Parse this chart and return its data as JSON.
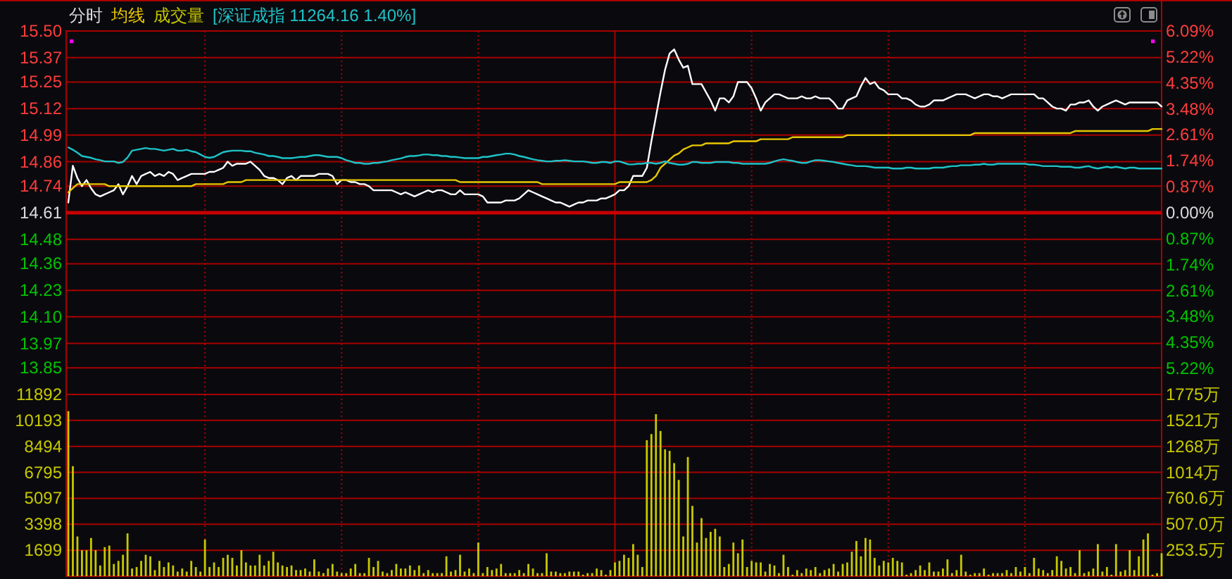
{
  "chart_data": [
    {
      "type": "line",
      "title": "分时",
      "categories": [
        null,
        null,
        null,
        null,
        null,
        null,
        null,
        null,
        null,
        null,
        null,
        null,
        null,
        null,
        null,
        null,
        null,
        null,
        null,
        null,
        null,
        null,
        null,
        null,
        null,
        null,
        null,
        null,
        null,
        null,
        null,
        null,
        null,
        null,
        null,
        null,
        null,
        null,
        null,
        null,
        null,
        null,
        null,
        null,
        null,
        null,
        null,
        null,
        null,
        null,
        null,
        null,
        null,
        null,
        null,
        null,
        null,
        null,
        null,
        null,
        null,
        null,
        null,
        null,
        null,
        null,
        null,
        null,
        null,
        null,
        null,
        null,
        null,
        null,
        null,
        null,
        null,
        null,
        null,
        null,
        null,
        null,
        null,
        null,
        null,
        null,
        null,
        null,
        null,
        null,
        null,
        null,
        null,
        null,
        null,
        null,
        null,
        null,
        null,
        null,
        null,
        null,
        null,
        null,
        null,
        null,
        null,
        null,
        null,
        null,
        null,
        null,
        null,
        null,
        null,
        null,
        null,
        null,
        null,
        null,
        null,
        null,
        null,
        null,
        null,
        null,
        null,
        null,
        null,
        null,
        null,
        null,
        null,
        null,
        null,
        null,
        null,
        null,
        null,
        null,
        null,
        null,
        null,
        null,
        null,
        null,
        null,
        null,
        null,
        null,
        null,
        null,
        null,
        null,
        null,
        null,
        null,
        null,
        null,
        null,
        null,
        null,
        null,
        null,
        null,
        null,
        null,
        null,
        null,
        null,
        null,
        null,
        null,
        null,
        null,
        null,
        null,
        null,
        null,
        null,
        null,
        null,
        null,
        null,
        null,
        null,
        null,
        null,
        null,
        null,
        null,
        null,
        null,
        null,
        null,
        null,
        null,
        null,
        null,
        null,
        null,
        null,
        null,
        null,
        null,
        null,
        null,
        null,
        null,
        null,
        null,
        null,
        null,
        null,
        null,
        null,
        null,
        null,
        null,
        null,
        null,
        null,
        null,
        null,
        null,
        null,
        null,
        null,
        null,
        null,
        null,
        null,
        null,
        null,
        null,
        null,
        null,
        null,
        null,
        null,
        null
      ],
      "series": [
        {
          "color": "#ffffff",
          "values": [
            14.66,
            14.84,
            14.78,
            14.74,
            14.77,
            14.73,
            14.7,
            14.69,
            14.7,
            14.71,
            14.72,
            14.75,
            14.7,
            14.74,
            14.79,
            14.75,
            14.79,
            14.8,
            14.81,
            14.79,
            14.8,
            14.79,
            14.81,
            14.8,
            14.77,
            14.78,
            14.79,
            14.8,
            14.8,
            14.8,
            14.8,
            14.81,
            14.81,
            14.82,
            14.83,
            14.86,
            14.84,
            14.85,
            14.85,
            14.85,
            14.86,
            14.84,
            14.82,
            14.79,
            14.78,
            14.78,
            14.77,
            14.75,
            14.78,
            14.79,
            14.77,
            14.79,
            14.79,
            14.79,
            14.79,
            14.8,
            14.8,
            14.8,
            14.79,
            14.75,
            14.77,
            14.77,
            14.76,
            14.76,
            14.75,
            14.75,
            14.74,
            14.72,
            14.72,
            14.72,
            14.72,
            14.72,
            14.71,
            14.7,
            14.71,
            14.7,
            14.69,
            14.7,
            14.71,
            14.72,
            14.71,
            14.72,
            14.72,
            14.71,
            14.7,
            14.7,
            14.72,
            14.7,
            14.7,
            14.7,
            14.7,
            14.69,
            14.66,
            14.66,
            14.66,
            14.66,
            14.67,
            14.67,
            14.67,
            14.68,
            14.7,
            14.72,
            14.71,
            14.7,
            14.69,
            14.68,
            14.67,
            14.66,
            14.66,
            14.65,
            14.64,
            14.65,
            14.66,
            14.66,
            14.67,
            14.67,
            14.67,
            14.68,
            14.68,
            14.69,
            14.7,
            14.72,
            14.72,
            14.74,
            14.79,
            14.79,
            14.79,
            14.83,
            14.96,
            15.08,
            15.2,
            15.31,
            15.39,
            15.41,
            15.36,
            15.32,
            15.33,
            15.24,
            15.24,
            15.24,
            15.2,
            15.16,
            15.11,
            15.17,
            15.17,
            15.15,
            15.18,
            15.25,
            15.25,
            15.25,
            15.22,
            15.17,
            15.11,
            15.15,
            15.17,
            15.19,
            15.19,
            15.18,
            15.17,
            15.17,
            15.17,
            15.18,
            15.17,
            15.17,
            15.18,
            15.17,
            15.17,
            15.17,
            15.15,
            15.12,
            15.12,
            15.16,
            15.17,
            15.18,
            15.23,
            15.27,
            15.24,
            15.25,
            15.22,
            15.21,
            15.19,
            15.19,
            15.19,
            15.17,
            15.17,
            15.16,
            15.14,
            15.13,
            15.13,
            15.14,
            15.16,
            15.16,
            15.16,
            15.17,
            15.18,
            15.19,
            15.19,
            15.19,
            15.18,
            15.17,
            15.18,
            15.19,
            15.19,
            15.18,
            15.18,
            15.17,
            15.18,
            15.19,
            15.19,
            15.19,
            15.19,
            15.19,
            15.19,
            15.17,
            15.17,
            15.15,
            15.13,
            15.12,
            15.12,
            15.11,
            15.14,
            15.14,
            15.15,
            15.15,
            15.16,
            15.13,
            15.11,
            15.13,
            15.14,
            15.15,
            15.16,
            15.15,
            15.14,
            15.15,
            15.15,
            15.15,
            15.15,
            15.15,
            15.15,
            15.15,
            15.13
          ]
        },
        {
          "name": "均线",
          "color": "#e8c800",
          "values": [
            14.71,
            14.73,
            14.75,
            14.75,
            14.75,
            14.75,
            14.75,
            14.75,
            14.75,
            14.74,
            14.74,
            14.74,
            14.74,
            14.74,
            14.74,
            14.74,
            14.74,
            14.74,
            14.74,
            14.74,
            14.74,
            14.74,
            14.74,
            14.74,
            14.74,
            14.74,
            14.74,
            14.74,
            14.75,
            14.75,
            14.75,
            14.75,
            14.75,
            14.75,
            14.75,
            14.76,
            14.76,
            14.76,
            14.76,
            14.77,
            14.77,
            14.77,
            14.77,
            14.77,
            14.77,
            14.77,
            14.77,
            14.77,
            14.77,
            14.77,
            14.77,
            14.77,
            14.77,
            14.77,
            14.77,
            14.77,
            14.77,
            14.77,
            14.77,
            14.77,
            14.77,
            14.77,
            14.77,
            14.77,
            14.77,
            14.77,
            14.77,
            14.77,
            14.77,
            14.77,
            14.77,
            14.77,
            14.77,
            14.77,
            14.77,
            14.77,
            14.77,
            14.77,
            14.77,
            14.77,
            14.77,
            14.77,
            14.77,
            14.77,
            14.77,
            14.77,
            14.76,
            14.76,
            14.76,
            14.76,
            14.76,
            14.76,
            14.76,
            14.76,
            14.76,
            14.76,
            14.76,
            14.76,
            14.76,
            14.76,
            14.76,
            14.76,
            14.76,
            14.76,
            14.75,
            14.75,
            14.75,
            14.75,
            14.75,
            14.75,
            14.75,
            14.75,
            14.75,
            14.75,
            14.75,
            14.75,
            14.75,
            14.75,
            14.75,
            14.75,
            14.75,
            14.76,
            14.76,
            14.76,
            14.76,
            14.76,
            14.76,
            14.76,
            14.77,
            14.79,
            14.83,
            14.85,
            14.87,
            14.89,
            14.9,
            14.92,
            14.93,
            14.94,
            14.94,
            14.94,
            14.95,
            14.95,
            14.95,
            14.95,
            14.95,
            14.95,
            14.96,
            14.96,
            14.96,
            14.96,
            14.96,
            14.96,
            14.97,
            14.97,
            14.97,
            14.97,
            14.97,
            14.97,
            14.97,
            14.98,
            14.98,
            14.98,
            14.98,
            14.98,
            14.98,
            14.98,
            14.98,
            14.98,
            14.98,
            14.98,
            14.98,
            14.99,
            14.99,
            14.99,
            14.99,
            14.99,
            14.99,
            14.99,
            14.99,
            14.99,
            14.99,
            14.99,
            14.99,
            14.99,
            14.99,
            14.99,
            14.99,
            14.99,
            14.99,
            14.99,
            14.99,
            14.99,
            14.99,
            14.99,
            14.99,
            14.99,
            14.99,
            14.99,
            14.99,
            15.0,
            15.0,
            15.0,
            15.0,
            15.0,
            15.0,
            15.0,
            15.0,
            15.0,
            15.0,
            15.0,
            15.0,
            15.0,
            15.0,
            15.0,
            15.0,
            15.0,
            15.0,
            15.0,
            15.0,
            15.0,
            15.0,
            15.01,
            15.01,
            15.01,
            15.01,
            15.01,
            15.01,
            15.01,
            15.01,
            15.01,
            15.01,
            15.01,
            15.01,
            15.01,
            15.01,
            15.01,
            15.01,
            15.01,
            15.02,
            15.02,
            15.02
          ]
        },
        {
          "name": "[深证成指 11264.16 1.40%]",
          "color": "#1ec3c8",
          "axis": "y2",
          "values": [
            2.19,
            2.11,
            2.01,
            1.9,
            1.87,
            1.84,
            1.79,
            1.76,
            1.72,
            1.72,
            1.72,
            1.67,
            1.7,
            1.85,
            2.08,
            2.11,
            2.14,
            2.17,
            2.14,
            2.14,
            2.11,
            2.08,
            2.11,
            2.14,
            2.08,
            2.08,
            2.11,
            2.06,
            2.03,
            1.95,
            1.87,
            1.84,
            1.87,
            1.95,
            2.03,
            2.06,
            2.08,
            2.08,
            2.08,
            2.06,
            2.06,
            2.01,
            1.98,
            1.95,
            1.9,
            1.9,
            1.87,
            1.83,
            1.83,
            1.83,
            1.85,
            1.87,
            1.87,
            1.9,
            1.93,
            1.93,
            1.9,
            1.87,
            1.87,
            1.87,
            1.83,
            1.76,
            1.72,
            1.67,
            1.67,
            1.64,
            1.64,
            1.67,
            1.67,
            1.7,
            1.72,
            1.76,
            1.79,
            1.82,
            1.87,
            1.9,
            1.9,
            1.92,
            1.95,
            1.95,
            1.93,
            1.93,
            1.9,
            1.9,
            1.87,
            1.87,
            1.85,
            1.83,
            1.83,
            1.83,
            1.83,
            1.87,
            1.87,
            1.9,
            1.93,
            1.95,
            1.98,
            1.98,
            1.95,
            1.9,
            1.87,
            1.83,
            1.79,
            1.76,
            1.74,
            1.72,
            1.72,
            1.74,
            1.74,
            1.76,
            1.74,
            1.72,
            1.72,
            1.72,
            1.7,
            1.67,
            1.67,
            1.7,
            1.7,
            1.67,
            1.72,
            1.72,
            1.67,
            1.62,
            1.62,
            1.64,
            1.64,
            1.67,
            1.67,
            1.64,
            1.67,
            1.72,
            1.67,
            1.64,
            1.61,
            1.61,
            1.64,
            1.7,
            1.7,
            1.67,
            1.67,
            1.67,
            1.7,
            1.7,
            1.7,
            1.7,
            1.67,
            1.67,
            1.64,
            1.64,
            1.64,
            1.64,
            1.64,
            1.64,
            1.67,
            1.72,
            1.76,
            1.79,
            1.76,
            1.74,
            1.7,
            1.67,
            1.67,
            1.72,
            1.76,
            1.76,
            1.74,
            1.72,
            1.7,
            1.67,
            1.64,
            1.61,
            1.59,
            1.56,
            1.56,
            1.56,
            1.54,
            1.51,
            1.51,
            1.51,
            1.51,
            1.48,
            1.48,
            1.48,
            1.51,
            1.51,
            1.48,
            1.48,
            1.48,
            1.48,
            1.51,
            1.51,
            1.51,
            1.54,
            1.56,
            1.56,
            1.59,
            1.59,
            1.59,
            1.61,
            1.61,
            1.64,
            1.61,
            1.61,
            1.64,
            1.64,
            1.64,
            1.64,
            1.64,
            1.64,
            1.64,
            1.61,
            1.61,
            1.59,
            1.56,
            1.56,
            1.56,
            1.56,
            1.54,
            1.54,
            1.54,
            1.51,
            1.51,
            1.54,
            1.56,
            1.51,
            1.48,
            1.51,
            1.54,
            1.51,
            1.54,
            1.51,
            1.48,
            1.51,
            1.51,
            1.48,
            1.48,
            1.48,
            1.48,
            1.48,
            1.48
          ]
        }
      ],
      "ylim": [
        13.72,
        15.5
      ],
      "yticks": [
        {
          "value": 15.5,
          "label": "15.50"
        },
        15.37,
        15.25,
        15.12,
        14.99,
        14.86,
        14.74,
        14.61,
        14.48,
        14.36,
        14.23,
        {
          "value": 14.1,
          "label": "14.10"
        },
        13.97,
        13.85
      ],
      "y2lim": [
        -6.09,
        6.09
      ],
      "y2ticks": [
        {
          "value": 6.09,
          "label": "6.09%"
        },
        {
          "value": 5.22,
          "label": "5.22%"
        },
        {
          "value": 4.35,
          "label": "4.35%"
        },
        {
          "value": 3.48,
          "label": "3.48%"
        },
        {
          "value": 2.61,
          "label": "2.61%"
        },
        {
          "value": 1.74,
          "label": "1.74%"
        },
        {
          "value": 0.87,
          "label": "0.87%"
        },
        {
          "value": 0,
          "label": "0.00%"
        },
        {
          "value": -0.87,
          "label": "0.87%"
        },
        {
          "value": -1.74,
          "label": "1.74%"
        },
        {
          "value": -2.61,
          "label": "2.61%"
        },
        {
          "value": -3.48,
          "label": "3.48%"
        },
        {
          "value": -4.35,
          "label": "4.35%"
        },
        {
          "value": -5.22,
          "label": "5.22%"
        }
      ],
      "ref_lines": [
        {
          "axis": "y",
          "value": 14.61,
          "color": "#c80000"
        }
      ],
      "grid": true,
      "legend": "top left"
    },
    {
      "type": "bar",
      "categories": [
        null,
        null,
        null,
        null,
        null,
        null,
        null,
        null,
        null,
        null,
        null,
        null,
        null,
        null,
        null,
        null,
        null,
        null,
        null,
        null,
        null,
        null,
        null,
        null,
        null,
        null,
        null,
        null,
        null,
        null,
        null,
        null,
        null,
        null,
        null,
        null,
        null,
        null,
        null,
        null,
        null,
        null,
        null,
        null,
        null,
        null,
        null,
        null,
        null,
        null,
        null,
        null,
        null,
        null,
        null,
        null,
        null,
        null,
        null,
        null,
        null,
        null,
        null,
        null,
        null,
        null,
        null,
        null,
        null,
        null,
        null,
        null,
        null,
        null,
        null,
        null,
        null,
        null,
        null,
        null,
        null,
        null,
        null,
        null,
        null,
        null,
        null,
        null,
        null,
        null,
        null,
        null,
        null,
        null,
        null,
        null,
        null,
        null,
        null,
        null,
        null,
        null,
        null,
        null,
        null,
        null,
        null,
        null,
        null,
        null,
        null,
        null,
        null,
        null,
        null,
        null,
        null,
        null,
        null,
        null,
        null,
        null,
        null,
        null,
        null,
        null,
        null,
        null,
        null,
        null,
        null,
        null,
        null,
        null,
        null,
        null,
        null,
        null,
        null,
        null,
        null,
        null,
        null,
        null,
        null,
        null,
        null,
        null,
        null,
        null,
        null,
        null,
        null,
        null,
        null,
        null,
        null,
        null,
        null,
        null,
        null,
        null,
        null,
        null,
        null,
        null,
        null,
        null,
        null,
        null,
        null,
        null,
        null,
        null,
        null,
        null,
        null,
        null,
        null,
        null,
        null,
        null,
        null,
        null,
        null,
        null,
        null,
        null,
        null,
        null,
        null,
        null,
        null,
        null,
        null,
        null,
        null,
        null,
        null,
        null,
        null,
        null,
        null,
        null,
        null,
        null,
        null,
        null,
        null,
        null,
        null,
        null,
        null,
        null,
        null,
        null,
        null,
        null,
        null,
        null,
        null,
        null,
        null,
        null,
        null,
        null,
        null,
        null,
        null,
        null,
        null,
        null,
        null,
        null,
        null,
        null,
        null,
        null,
        null,
        null,
        null
      ],
      "series": [
        {
          "name": "成交量",
          "color": "#c8c800",
          "values": [
            10800,
            7200,
            2600,
            1700,
            1700,
            2500,
            1700,
            700,
            1900,
            2000,
            800,
            1000,
            1400,
            2800,
            500,
            600,
            1000,
            1400,
            1300,
            400,
            1000,
            600,
            900,
            700,
            300,
            500,
            300,
            1000,
            600,
            300,
            2400,
            600,
            900,
            600,
            1200,
            1400,
            1200,
            700,
            1700,
            900,
            700,
            700,
            1400,
            700,
            1000,
            1600,
            900,
            700,
            600,
            700,
            400,
            400,
            500,
            300,
            1100,
            300,
            200,
            500,
            800,
            300,
            200,
            200,
            500,
            800,
            200,
            200,
            1200,
            600,
            1000,
            300,
            200,
            400,
            800,
            500,
            500,
            700,
            400,
            700,
            200,
            400,
            200,
            200,
            200,
            1300,
            300,
            400,
            1400,
            300,
            500,
            200,
            2200,
            200,
            600,
            400,
            500,
            800,
            200,
            200,
            200,
            400,
            200,
            800,
            500,
            200,
            200,
            1500,
            300,
            300,
            200,
            200,
            300,
            300,
            300,
            100,
            200,
            200,
            500,
            400,
            100,
            400,
            900,
            1000,
            1400,
            1200,
            2100,
            1400,
            600,
            8900,
            9300,
            10600,
            9500,
            8300,
            8200,
            7400,
            6300,
            2600,
            7800,
            4600,
            2200,
            3800,
            2500,
            2900,
            3100,
            2600,
            600,
            800,
            2200,
            1500,
            2400,
            600,
            1000,
            900,
            900,
            300,
            800,
            700,
            200,
            1400,
            600,
            100,
            400,
            200,
            500,
            400,
            600,
            200,
            400,
            500,
            800,
            300,
            800,
            900,
            1600,
            2300,
            1300,
            2500,
            2400,
            1200,
            700,
            1000,
            900,
            1200,
            1000,
            900,
            100,
            200,
            400,
            700,
            400,
            900,
            300,
            300,
            500,
            1100,
            200,
            400,
            1400,
            300,
            100,
            200,
            200,
            500,
            100,
            200,
            200,
            200,
            400,
            200,
            600,
            300,
            600,
            200,
            1200,
            500,
            400,
            200,
            400,
            1300,
            1000,
            500,
            600,
            200,
            1700,
            200,
            300,
            500,
            2100,
            300,
            600,
            100,
            2100,
            300,
            400,
            1700,
            400,
            1300,
            2400,
            2800,
            100,
            200,
            1500
          ]
        }
      ],
      "ylim": [
        0,
        11892
      ],
      "yticks": [
        1699,
        3398,
        5097,
        6795,
        8494,
        10193,
        11892
      ],
      "y2lim": [
        0,
        1775
      ],
      "y2ticks": [
        {
          "value": 253.5,
          "label": "253.5万"
        },
        {
          "value": 507,
          "label": "507.0万"
        },
        {
          "value": 760.6,
          "label": "760.6万"
        },
        {
          "value": 1014,
          "label": "1014万"
        },
        {
          "value": 1268,
          "label": "1268万"
        },
        {
          "value": 1521,
          "label": "1521万"
        },
        {
          "value": 1775,
          "label": "1775万"
        }
      ],
      "grid": true,
      "legend": "top left"
    }
  ]
}
